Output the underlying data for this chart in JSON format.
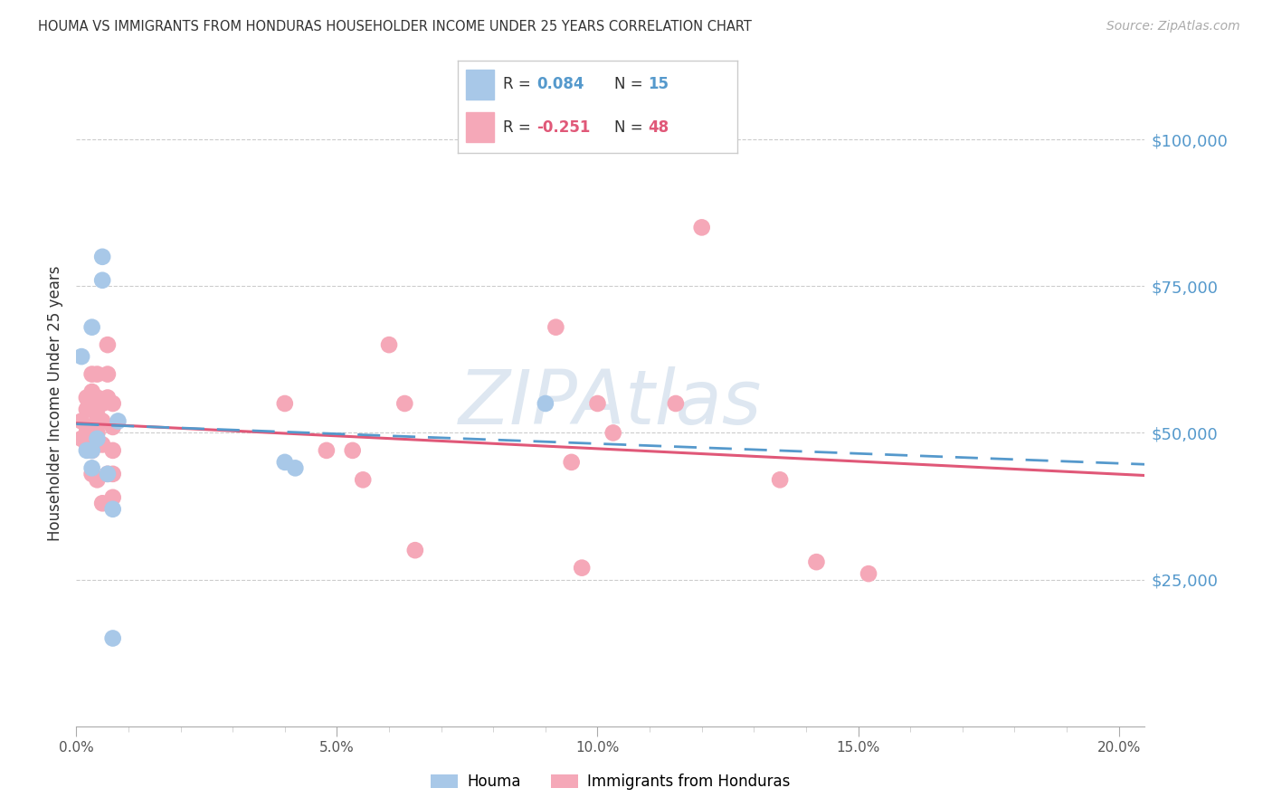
{
  "title": "HOUMA VS IMMIGRANTS FROM HONDURAS HOUSEHOLDER INCOME UNDER 25 YEARS CORRELATION CHART",
  "source": "Source: ZipAtlas.com",
  "ylabel": "Householder Income Under 25 years",
  "ytick_vals": [
    25000,
    50000,
    75000,
    100000
  ],
  "ytick_labels": [
    "$25,000",
    "$50,000",
    "$75,000",
    "$100,000"
  ],
  "ylim": [
    0,
    110000
  ],
  "xlim_min": 0.0,
  "xlim_max": 0.205,
  "xtick_vals": [
    0.0,
    0.05,
    0.1,
    0.15,
    0.2
  ],
  "xtick_labels": [
    "0.0%",
    "5.0%",
    "10.0%",
    "15.0%",
    "20.0%"
  ],
  "bg_color": "#ffffff",
  "grid_color": "#cccccc",
  "houma_scatter_color": "#a8c8e8",
  "honduras_scatter_color": "#f5a8b8",
  "houma_line_color": "#5599cc",
  "honduras_line_color": "#e05878",
  "right_label_color": "#5599cc",
  "houma_x": [
    0.001,
    0.002,
    0.003,
    0.003,
    0.003,
    0.004,
    0.005,
    0.005,
    0.006,
    0.007,
    0.007,
    0.008,
    0.04,
    0.042,
    0.09
  ],
  "houma_y": [
    63000,
    47000,
    68000,
    47000,
    44000,
    49000,
    76000,
    80000,
    43000,
    37000,
    15000,
    52000,
    45000,
    44000,
    55000
  ],
  "honduras_x": [
    0.001,
    0.001,
    0.002,
    0.002,
    0.002,
    0.002,
    0.002,
    0.003,
    0.003,
    0.003,
    0.003,
    0.003,
    0.003,
    0.004,
    0.004,
    0.004,
    0.004,
    0.004,
    0.005,
    0.005,
    0.005,
    0.005,
    0.006,
    0.006,
    0.006,
    0.006,
    0.007,
    0.007,
    0.007,
    0.007,
    0.007,
    0.04,
    0.048,
    0.053,
    0.055,
    0.06,
    0.063,
    0.065,
    0.092,
    0.095,
    0.097,
    0.1,
    0.103,
    0.115,
    0.12,
    0.135,
    0.142,
    0.152
  ],
  "honduras_y": [
    52000,
    49000,
    56000,
    54000,
    51000,
    50000,
    48000,
    60000,
    57000,
    54000,
    51000,
    47000,
    43000,
    60000,
    56000,
    53000,
    50000,
    42000,
    55000,
    52000,
    48000,
    38000,
    65000,
    60000,
    56000,
    43000,
    55000,
    51000,
    47000,
    43000,
    39000,
    55000,
    47000,
    47000,
    42000,
    65000,
    55000,
    30000,
    68000,
    45000,
    27000,
    55000,
    50000,
    55000,
    85000,
    42000,
    28000,
    26000
  ],
  "watermark_text": "ZIPAtlas",
  "watermark_color": "#c8d8e8",
  "legend_label1": "R = 0.084",
  "legend_n1": "N = 15",
  "legend_label2": "R = -0.251",
  "legend_n2": "N = 48",
  "bottom_label1": "Houma",
  "bottom_label2": "Immigrants from Honduras"
}
